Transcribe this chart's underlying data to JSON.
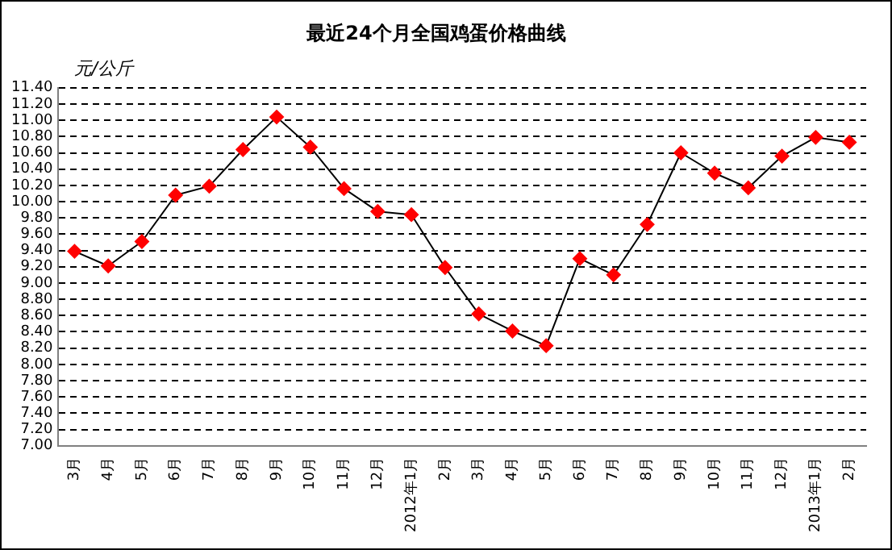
{
  "chart_data": {
    "type": "line",
    "title": "最近24个月全国鸡蛋价格曲线",
    "ylabel": "元/公斤",
    "categories": [
      "3月",
      "4月",
      "5月",
      "6月",
      "7月",
      "8月",
      "9月",
      "10月",
      "11月",
      "12月",
      "2012年1月",
      "2月",
      "3月",
      "4月",
      "5月",
      "6月",
      "7月",
      "8月",
      "9月",
      "10月",
      "11月",
      "12月",
      "2013年1月",
      "2月"
    ],
    "series": [
      {
        "color": "#000000",
        "values": [
          9.39,
          9.21,
          9.51,
          10.08,
          10.19,
          10.64,
          11.04,
          10.67,
          10.16,
          9.88,
          9.84,
          9.19,
          8.62,
          8.41,
          8.23,
          9.3,
          9.1,
          9.72,
          10.6,
          10.35,
          10.17,
          10.56,
          10.79,
          10.73
        ]
      }
    ],
    "marker": "diamond",
    "line_style": "solid",
    "grid": "y",
    "legend": false,
    "ylim": [
      7,
      11.4
    ],
    "yticks": [
      {
        "value": 7,
        "label": "7.00"
      },
      {
        "value": 7.2,
        "label": "7.20"
      },
      {
        "value": 7.4,
        "label": "7.40"
      },
      {
        "value": 7.6,
        "label": "7.60"
      },
      {
        "value": 7.8,
        "label": "7.80"
      },
      {
        "value": 8,
        "label": "8.00"
      },
      {
        "value": 8.2,
        "label": "8.20"
      },
      {
        "value": 8.4,
        "label": "8.40"
      },
      {
        "value": 8.6,
        "label": "8.60"
      },
      {
        "value": 8.8,
        "label": "8.80"
      },
      {
        "value": 9,
        "label": "9.00"
      },
      {
        "value": 9.2,
        "label": "9.20"
      },
      {
        "value": 9.4,
        "label": "9.40"
      },
      {
        "value": 9.6,
        "label": "9.60"
      },
      {
        "value": 9.8,
        "label": "9.80"
      },
      {
        "value": 10,
        "label": "10.00"
      },
      {
        "value": 10.2,
        "label": "10.20"
      },
      {
        "value": 10.4,
        "label": "10.40"
      },
      {
        "value": 10.6,
        "label": "10.60"
      },
      {
        "value": 10.8,
        "label": "10.80"
      },
      {
        "value": 11,
        "label": "11.00"
      },
      {
        "value": 11.2,
        "label": "11.20"
      },
      {
        "value": 11.4,
        "label": "11.40"
      }
    ]
  }
}
